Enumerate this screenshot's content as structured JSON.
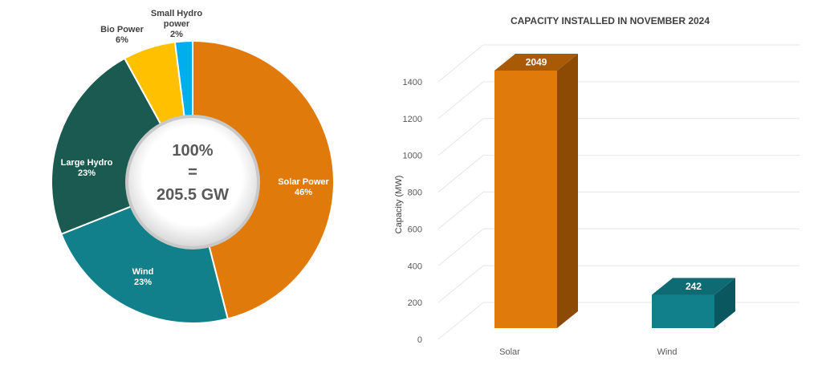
{
  "colors": {
    "solar": "#E07A0B",
    "wind": "#12808A",
    "large_hydro": "#1B5A50",
    "bio": "#FFC000",
    "small_hydro": "#00AEEF",
    "solar_dark": "#8C4A04",
    "wind_dark": "#0B5760",
    "grid": "#E6E6E6"
  },
  "donut": {
    "center_lines": [
      "100%",
      "=",
      "205.5 GW"
    ]
  },
  "bar": {
    "title": "CAPACITY INSTALLED IN NOVEMBER 2024",
    "ylabel": "Capacity (MW)"
  },
  "chart_data": [
    {
      "type": "pie",
      "title": "",
      "total_text": "100% = 205.5 GW",
      "slices": [
        {
          "name": "Solar Power",
          "label": "Solar Power",
          "percent_label": "46%",
          "value": 46,
          "color": "#E07A0B"
        },
        {
          "name": "Wind",
          "label": "Wind",
          "percent_label": "23%",
          "value": 23,
          "color": "#12808A"
        },
        {
          "name": "Large Hydro",
          "label": "Large Hydro",
          "percent_label": "23%",
          "value": 23,
          "color": "#1B5A50"
        },
        {
          "name": "Bio Power",
          "label": "Bio Power",
          "percent_label": "6%",
          "value": 6,
          "color": "#FFC000"
        },
        {
          "name": "Small Hydro power",
          "label": "Small Hydro\npower",
          "percent_label": "2%",
          "value": 2,
          "color": "#00AEEF"
        }
      ]
    },
    {
      "type": "bar",
      "title": "CAPACITY INSTALLED IN NOVEMBER 2024",
      "xlabel": "",
      "ylabel": "Capacity (MW)",
      "categories": [
        "Solar",
        "Wind"
      ],
      "values": [
        2049,
        242
      ],
      "data_labels": [
        "2049",
        "242"
      ],
      "ylim": [
        0,
        1400
      ],
      "yticks": [
        0,
        200,
        400,
        600,
        800,
        1000,
        1200,
        1400
      ],
      "grid": true,
      "legend": "none",
      "style": "3d-column"
    }
  ]
}
